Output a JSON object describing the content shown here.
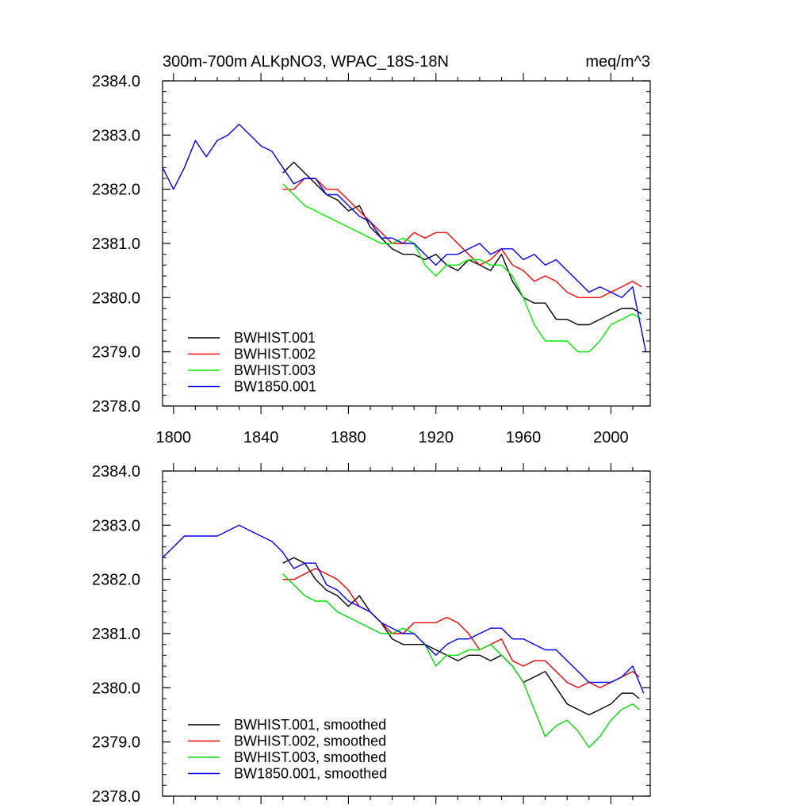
{
  "chart_data": [
    {
      "type": "line",
      "title_left": "300m-700m ALKpNO3, WPAC_18S-18N",
      "title_right": "meq/m^3",
      "xlim": [
        1795,
        2018
      ],
      "ylim": [
        2378.0,
        2384.0
      ],
      "x_ticks": [
        1800,
        1840,
        1880,
        1920,
        1960,
        2000
      ],
      "x_tick_labels": [
        "1800",
        "1840",
        "1880",
        "1920",
        "1960",
        "2000"
      ],
      "y_ticks": [
        2378.0,
        2379.0,
        2380.0,
        2381.0,
        2382.0,
        2383.0,
        2384.0
      ],
      "y_tick_labels": [
        "2378.0",
        "2379.0",
        "2380.0",
        "2381.0",
        "2382.0",
        "2383.0",
        "2384.0"
      ],
      "legend_position": "bottom-left",
      "series": [
        {
          "name": "BWHIST.001",
          "color": "#000000",
          "x": [
            1850,
            1855,
            1860,
            1865,
            1870,
            1875,
            1880,
            1885,
            1890,
            1895,
            1900,
            1905,
            1910,
            1915,
            1920,
            1925,
            1930,
            1935,
            1940,
            1945,
            1950,
            1955,
            1960,
            1965,
            1970,
            1975,
            1980,
            1985,
            1990,
            1995,
            2000,
            2005,
            2010,
            2014
          ],
          "y": [
            2382.3,
            2382.5,
            2382.3,
            2382.1,
            2381.9,
            2381.8,
            2381.6,
            2381.7,
            2381.3,
            2381.1,
            2380.9,
            2380.8,
            2380.8,
            2380.7,
            2380.8,
            2380.6,
            2380.5,
            2380.7,
            2380.6,
            2380.5,
            2380.8,
            2380.3,
            2380.0,
            2379.9,
            2379.9,
            2379.6,
            2379.6,
            2379.5,
            2379.5,
            2379.6,
            2379.7,
            2379.8,
            2379.8,
            2379.7
          ]
        },
        {
          "name": "BWHIST.002",
          "color": "#ff0000",
          "x": [
            1850,
            1855,
            1860,
            1865,
            1870,
            1875,
            1880,
            1885,
            1890,
            1895,
            1900,
            1905,
            1910,
            1915,
            1920,
            1925,
            1930,
            1935,
            1940,
            1945,
            1950,
            1955,
            1960,
            1965,
            1970,
            1975,
            1980,
            1985,
            1990,
            1995,
            2000,
            2005,
            2010,
            2014
          ],
          "y": [
            2382.0,
            2382.0,
            2382.2,
            2382.2,
            2382.0,
            2382.0,
            2381.8,
            2381.6,
            2381.4,
            2381.2,
            2381.0,
            2381.0,
            2381.2,
            2381.1,
            2381.2,
            2381.2,
            2381.0,
            2380.8,
            2380.6,
            2380.7,
            2380.9,
            2380.6,
            2380.5,
            2380.3,
            2380.4,
            2380.3,
            2380.1,
            2380.0,
            2380.0,
            2380.0,
            2380.1,
            2380.2,
            2380.3,
            2380.2
          ]
        },
        {
          "name": "BWHIST.003",
          "color": "#00ee00",
          "x": [
            1850,
            1855,
            1860,
            1865,
            1870,
            1875,
            1880,
            1885,
            1890,
            1895,
            1900,
            1905,
            1910,
            1915,
            1920,
            1925,
            1930,
            1935,
            1940,
            1945,
            1950,
            1955,
            1960,
            1965,
            1970,
            1975,
            1980,
            1985,
            1990,
            1995,
            2000,
            2005,
            2010,
            2014
          ],
          "y": [
            2382.1,
            2381.9,
            2381.7,
            2381.6,
            2381.5,
            2381.4,
            2381.3,
            2381.2,
            2381.1,
            2381.0,
            2381.0,
            2381.1,
            2381.0,
            2380.6,
            2380.4,
            2380.6,
            2380.6,
            2380.7,
            2380.7,
            2380.6,
            2380.6,
            2380.4,
            2380.0,
            2379.5,
            2379.2,
            2379.2,
            2379.2,
            2379.0,
            2379.0,
            2379.2,
            2379.5,
            2379.6,
            2379.7,
            2379.6
          ]
        },
        {
          "name": "BW1850.001",
          "color": "#0000ee",
          "x": [
            1795,
            1800,
            1805,
            1810,
            1815,
            1820,
            1825,
            1830,
            1835,
            1840,
            1845,
            1850,
            1855,
            1860,
            1865,
            1870,
            1875,
            1880,
            1885,
            1890,
            1895,
            1900,
            1905,
            1910,
            1915,
            1920,
            1925,
            1930,
            1935,
            1940,
            1945,
            1950,
            1955,
            1960,
            1965,
            1970,
            1975,
            1980,
            1985,
            1990,
            1995,
            2000,
            2005,
            2010,
            2016
          ],
          "y": [
            2382.4,
            2382.0,
            2382.4,
            2382.9,
            2382.6,
            2382.9,
            2383.0,
            2383.2,
            2383.0,
            2382.8,
            2382.7,
            2382.4,
            2382.1,
            2382.2,
            2382.2,
            2381.9,
            2381.9,
            2381.7,
            2381.5,
            2381.4,
            2381.1,
            2381.1,
            2381.0,
            2381.0,
            2380.8,
            2380.6,
            2380.8,
            2380.8,
            2380.9,
            2381.0,
            2380.8,
            2380.9,
            2380.9,
            2380.7,
            2380.8,
            2380.6,
            2380.7,
            2380.5,
            2380.3,
            2380.1,
            2380.2,
            2380.1,
            2380.0,
            2380.2,
            2379.0
          ]
        }
      ]
    },
    {
      "type": "line",
      "xlim": [
        1795,
        2018
      ],
      "ylim": [
        2378.0,
        2384.0
      ],
      "x_ticks": [
        1800,
        1840,
        1880,
        1920,
        1960,
        2000
      ],
      "y_ticks": [
        2378.0,
        2379.0,
        2380.0,
        2381.0,
        2382.0,
        2383.0,
        2384.0
      ],
      "y_tick_labels": [
        "2378.0",
        "2379.0",
        "2380.0",
        "2381.0",
        "2382.0",
        "2383.0",
        "2384.0"
      ],
      "legend_position": "bottom-left",
      "series": [
        {
          "name": "BWHIST.001, smoothed",
          "color": "#000000",
          "x": [
            1850,
            1855,
            1860,
            1865,
            1870,
            1875,
            1880,
            1885,
            1890,
            1895,
            1900,
            1905,
            1910,
            1915,
            1920,
            1925,
            1930,
            1935,
            1940,
            1945,
            1950,
            1955,
            1960,
            1965,
            1970,
            1975,
            1980,
            1985,
            1990,
            1995,
            2000,
            2005,
            2010,
            2013
          ],
          "y": [
            2382.3,
            2382.4,
            2382.3,
            2382.0,
            2381.8,
            2381.7,
            2381.5,
            2381.7,
            2381.4,
            2381.2,
            2380.9,
            2380.8,
            2380.8,
            2380.8,
            2380.7,
            2380.6,
            2380.5,
            2380.6,
            2380.6,
            2380.5,
            2380.6,
            2380.4,
            2380.1,
            2380.2,
            2380.3,
            2380.0,
            2379.7,
            2379.6,
            2379.5,
            2379.6,
            2379.7,
            2379.9,
            2379.9,
            2379.8
          ]
        },
        {
          "name": "BWHIST.002, smoothed",
          "color": "#ee0000",
          "x": [
            1850,
            1855,
            1860,
            1865,
            1870,
            1875,
            1880,
            1885,
            1890,
            1895,
            1900,
            1905,
            1910,
            1915,
            1920,
            1925,
            1930,
            1935,
            1940,
            1945,
            1950,
            1955,
            1960,
            1965,
            1970,
            1975,
            1980,
            1985,
            1990,
            1995,
            2000,
            2005,
            2010,
            2013
          ],
          "y": [
            2382.0,
            2382.0,
            2382.1,
            2382.2,
            2382.1,
            2382.0,
            2381.8,
            2381.5,
            2381.4,
            2381.2,
            2381.0,
            2381.0,
            2381.2,
            2381.2,
            2381.2,
            2381.3,
            2381.2,
            2381.0,
            2380.7,
            2380.8,
            2380.9,
            2380.5,
            2380.4,
            2380.5,
            2380.5,
            2380.3,
            2380.1,
            2380.0,
            2380.1,
            2380.0,
            2380.1,
            2380.2,
            2380.3,
            2380.2
          ]
        },
        {
          "name": "BWHIST.003, smoothed",
          "color": "#00dd00",
          "x": [
            1850,
            1855,
            1860,
            1865,
            1870,
            1875,
            1880,
            1885,
            1890,
            1895,
            1900,
            1905,
            1910,
            1915,
            1920,
            1925,
            1930,
            1935,
            1940,
            1945,
            1950,
            1955,
            1960,
            1965,
            1970,
            1975,
            1980,
            1985,
            1990,
            1995,
            2000,
            2005,
            2010,
            2013
          ],
          "y": [
            2382.1,
            2381.9,
            2381.7,
            2381.6,
            2381.6,
            2381.4,
            2381.3,
            2381.2,
            2381.1,
            2381.0,
            2381.0,
            2381.1,
            2381.0,
            2380.8,
            2380.4,
            2380.6,
            2380.6,
            2380.7,
            2380.7,
            2380.8,
            2380.6,
            2380.4,
            2380.1,
            2379.6,
            2379.1,
            2379.3,
            2379.4,
            2379.2,
            2378.9,
            2379.1,
            2379.4,
            2379.6,
            2379.7,
            2379.6
          ]
        },
        {
          "name": "BW1850.001, smoothed",
          "color": "#0000ee",
          "x": [
            1795,
            1800,
            1805,
            1810,
            1815,
            1820,
            1825,
            1830,
            1835,
            1840,
            1845,
            1850,
            1855,
            1860,
            1865,
            1870,
            1875,
            1880,
            1885,
            1890,
            1895,
            1900,
            1905,
            1910,
            1915,
            1920,
            1925,
            1930,
            1935,
            1940,
            1945,
            1950,
            1955,
            1960,
            1965,
            1970,
            1975,
            1980,
            1985,
            1990,
            1995,
            2000,
            2005,
            2010,
            2015
          ],
          "y": [
            2382.4,
            2382.6,
            2382.8,
            2382.8,
            2382.8,
            2382.8,
            2382.9,
            2383.0,
            2382.9,
            2382.8,
            2382.7,
            2382.5,
            2382.2,
            2382.3,
            2382.3,
            2381.9,
            2381.8,
            2381.6,
            2381.5,
            2381.4,
            2381.2,
            2381.1,
            2381.0,
            2381.0,
            2380.8,
            2380.6,
            2380.8,
            2380.9,
            2380.9,
            2381.0,
            2381.1,
            2381.1,
            2380.9,
            2380.9,
            2380.8,
            2380.7,
            2380.7,
            2380.5,
            2380.3,
            2380.1,
            2380.1,
            2380.1,
            2380.2,
            2380.4,
            2379.9
          ]
        }
      ]
    }
  ]
}
